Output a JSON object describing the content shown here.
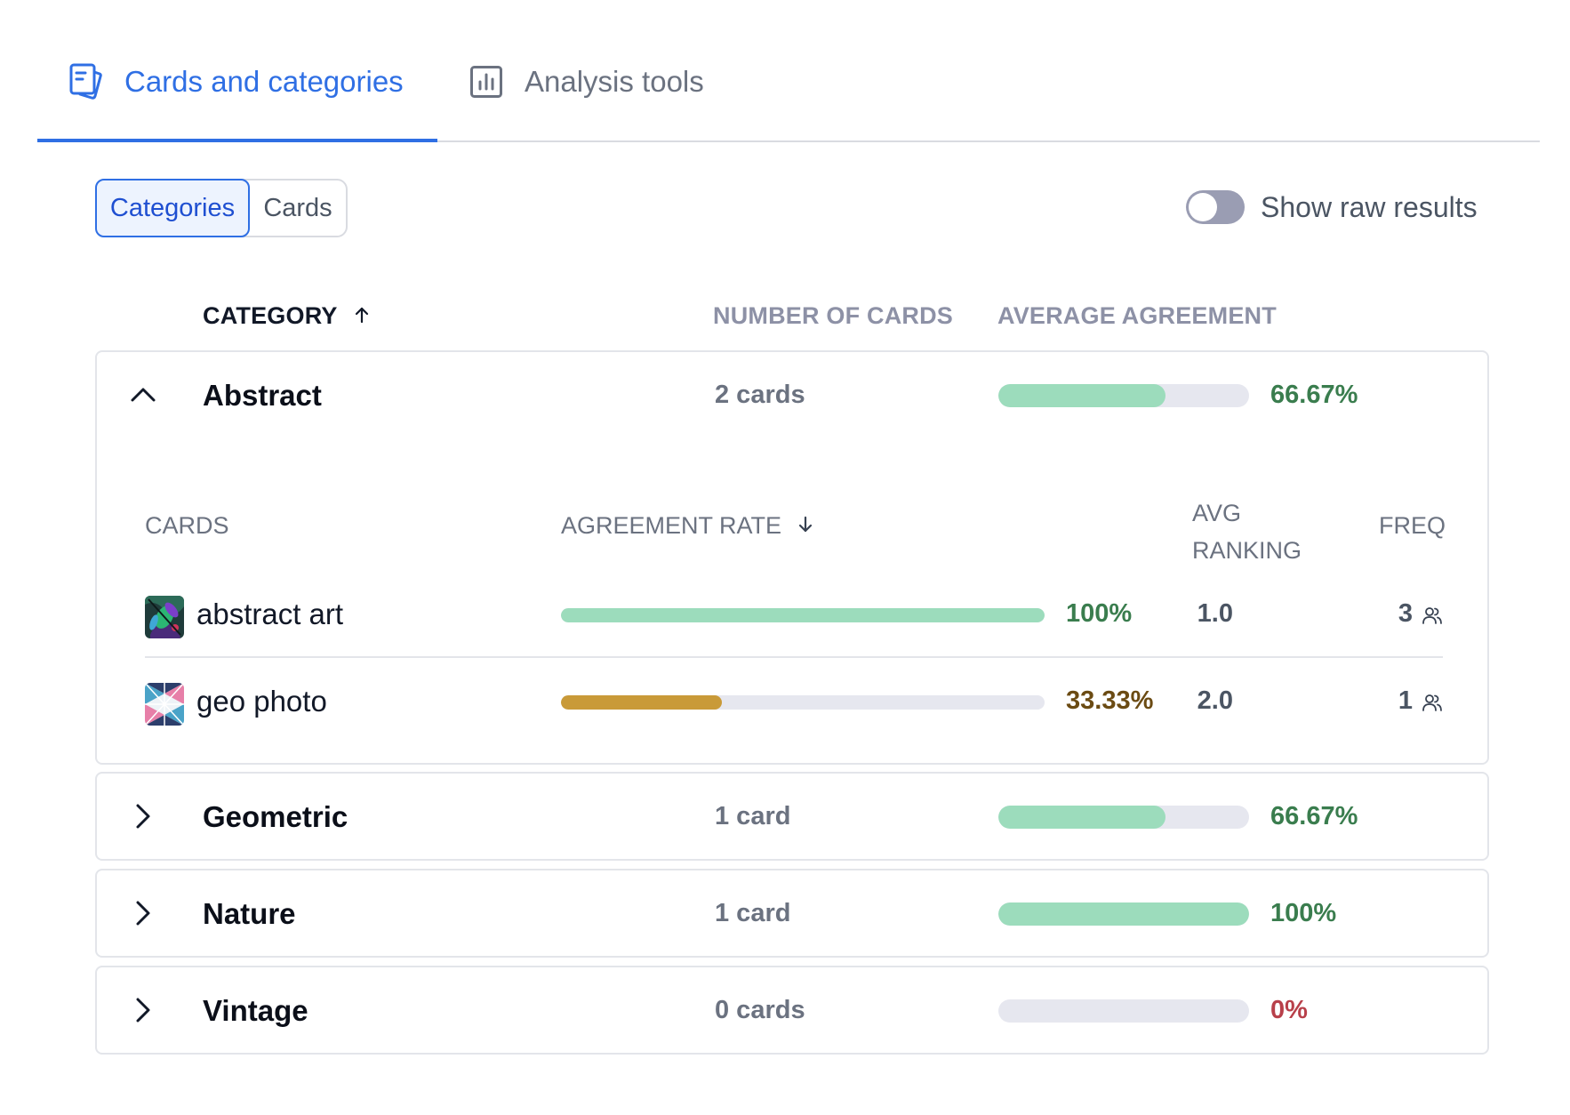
{
  "tabs": [
    {
      "label": "Cards and categories",
      "icon": "cards-icon",
      "active": true
    },
    {
      "label": "Analysis tools",
      "icon": "bar-chart-icon",
      "active": false
    }
  ],
  "view_toggle": {
    "categories_label": "Categories",
    "cards_label": "Cards",
    "selected": "Categories"
  },
  "raw_results": {
    "label": "Show raw results",
    "enabled": false
  },
  "table_header": {
    "category": "CATEGORY",
    "number_of_cards": "NUMBER OF CARDS",
    "average_agreement": "AVERAGE AGREEMENT"
  },
  "categories": [
    {
      "name": "Abstract",
      "count_label": "2 cards",
      "agreement_label": "66.67%",
      "agreement": 0.6667,
      "expanded": true,
      "cards_header": {
        "cards": "CARDS",
        "agreement_rate": "AGREEMENT RATE",
        "avg_ranking_line1": "AVG",
        "avg_ranking_line2": "RANKING",
        "freq": "FREQ"
      },
      "cards": [
        {
          "name": "abstract art",
          "rate_label": "100%",
          "rate": 1.0,
          "avg_ranking": "1.0",
          "freq": "3"
        },
        {
          "name": "geo photo",
          "rate_label": "33.33%",
          "rate": 0.3333,
          "avg_ranking": "2.0",
          "freq": "1"
        }
      ]
    },
    {
      "name": "Geometric",
      "count_label": "1 card",
      "agreement_label": "66.67%",
      "agreement": 0.6667,
      "expanded": false
    },
    {
      "name": "Nature",
      "count_label": "1 card",
      "agreement_label": "100%",
      "agreement": 1.0,
      "expanded": false
    },
    {
      "name": "Vintage",
      "count_label": "0 cards",
      "agreement_label": "0%",
      "agreement": 0.0,
      "expanded": false
    }
  ],
  "colors": {
    "accent": "#2f6fe4",
    "bar_green": "#9cdcbc",
    "bar_amber": "#c99a38",
    "bar_track": "#e6e7ef",
    "text_green": "#3a7d4e",
    "text_amber": "#6b4b13",
    "text_red": "#b8404a"
  }
}
